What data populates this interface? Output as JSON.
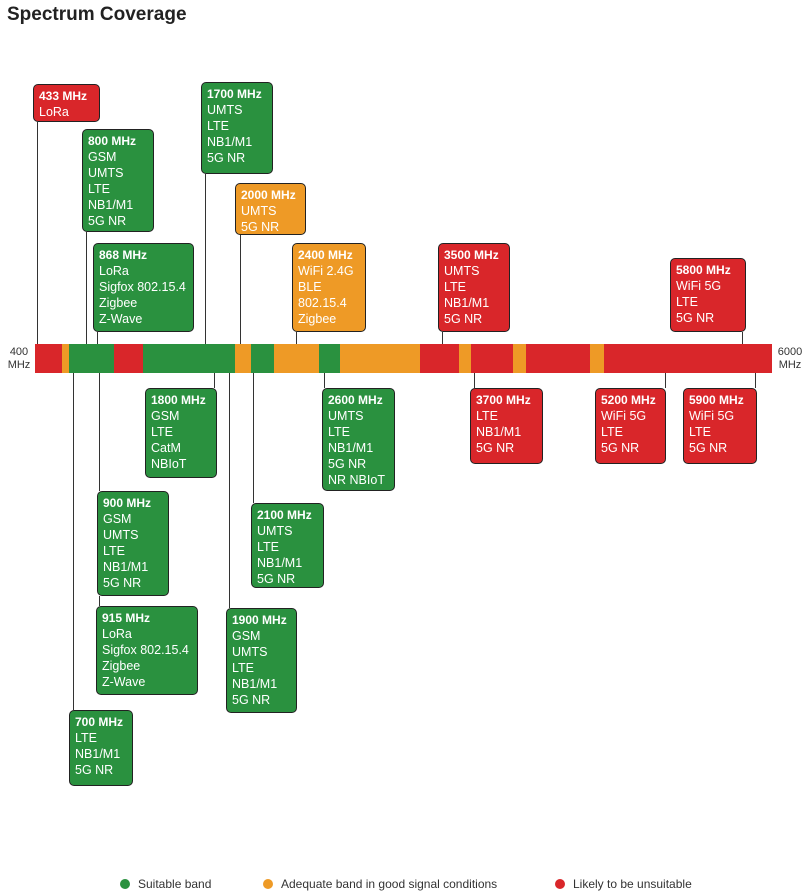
{
  "title": "Spectrum Coverage",
  "colors": {
    "suitable": "#2a913f",
    "adequate": "#ee9a26",
    "unsuitable": "#d9262a"
  },
  "axis": {
    "start_value": "400",
    "start_unit": "MHz",
    "end_value": "6000",
    "end_unit": "MHz"
  },
  "bar_segments": [
    "unsuitable",
    "adequate",
    "suitable",
    "unsuitable",
    "suitable",
    "adequate",
    "suitable",
    "adequate",
    "suitable",
    "adequate",
    "unsuitable",
    "adequate",
    "unsuitable",
    "adequate",
    "unsuitable",
    "adequate",
    "unsuitable"
  ],
  "bands": [
    {
      "freq": "433 MHz",
      "status": "unsuitable",
      "techs": [
        "LoRa"
      ]
    },
    {
      "freq": "800 MHz",
      "status": "suitable",
      "techs": [
        "GSM",
        "UMTS",
        "LTE",
        "NB1/M1",
        "5G NR"
      ]
    },
    {
      "freq": "868 MHz",
      "status": "suitable",
      "techs": [
        "LoRa",
        "Sigfox 802.15.4",
        "Zigbee",
        "Z-Wave"
      ]
    },
    {
      "freq": "1700 MHz",
      "status": "suitable",
      "techs": [
        "UMTS",
        "LTE",
        "NB1/M1",
        "5G NR"
      ]
    },
    {
      "freq": "2000 MHz",
      "status": "adequate",
      "techs": [
        "UMTS",
        "5G NR"
      ]
    },
    {
      "freq": "2400 MHz",
      "status": "adequate",
      "techs": [
        "WiFi 2.4G",
        "BLE",
        "802.15.4",
        "Zigbee"
      ]
    },
    {
      "freq": "3500 MHz",
      "status": "unsuitable",
      "techs": [
        "UMTS",
        "LTE",
        "NB1/M1",
        "5G NR"
      ]
    },
    {
      "freq": "5800 MHz",
      "status": "unsuitable",
      "techs": [
        "WiFi 5G",
        "LTE",
        "5G NR"
      ]
    },
    {
      "freq": "1800 MHz",
      "status": "suitable",
      "techs": [
        "GSM",
        "LTE",
        "CatM",
        "NBIoT"
      ]
    },
    {
      "freq": "2600 MHz",
      "status": "suitable",
      "techs": [
        "UMTS",
        "LTE",
        "NB1/M1",
        "5G NR",
        "NR NBIoT"
      ]
    },
    {
      "freq": "3700 MHz",
      "status": "unsuitable",
      "techs": [
        "LTE",
        "NB1/M1",
        "5G NR"
      ]
    },
    {
      "freq": "5200 MHz",
      "status": "unsuitable",
      "techs": [
        "WiFi 5G",
        "LTE",
        "5G NR"
      ]
    },
    {
      "freq": "5900 MHz",
      "status": "unsuitable",
      "techs": [
        "WiFi 5G",
        "LTE",
        "5G NR"
      ]
    },
    {
      "freq": "900 MHz",
      "status": "suitable",
      "techs": [
        "GSM",
        "UMTS",
        "LTE",
        "NB1/M1",
        "5G NR"
      ]
    },
    {
      "freq": "915 MHz",
      "status": "suitable",
      "techs": [
        "LoRa",
        "Sigfox 802.15.4",
        "Zigbee",
        "Z-Wave"
      ]
    },
    {
      "freq": "1900 MHz",
      "status": "suitable",
      "techs": [
        "GSM",
        "UMTS",
        "LTE",
        "NB1/M1",
        "5G NR"
      ]
    },
    {
      "freq": "2100 MHz",
      "status": "suitable",
      "techs": [
        "UMTS",
        "LTE",
        "NB1/M1",
        "5G NR"
      ]
    },
    {
      "freq": "700 MHz",
      "status": "suitable",
      "techs": [
        "LTE",
        "NB1/M1",
        "5G NR"
      ]
    }
  ],
  "legend": [
    {
      "label": "Suitable band",
      "status": "suitable"
    },
    {
      "label": "Adequate band in good signal conditions",
      "status": "adequate"
    },
    {
      "label": "Likely to be unsuitable",
      "status": "unsuitable"
    }
  ]
}
